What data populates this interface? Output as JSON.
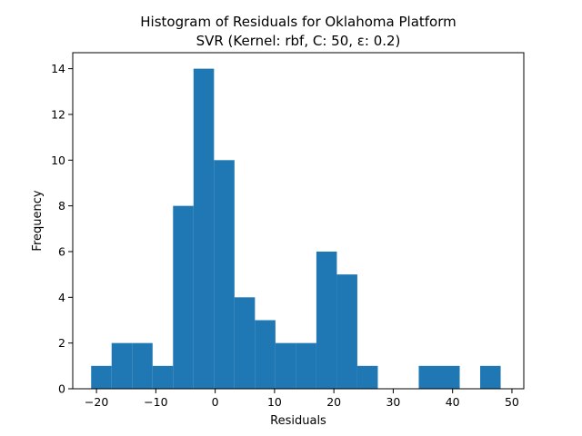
{
  "chart_data": {
    "type": "bar",
    "title_line1": "Histogram of Residuals for Oklahoma Platform",
    "title_line2": "SVR (Kernel: rbf, C: 50, ε: 0.2)",
    "xlabel": "Residuals",
    "ylabel": "Frequency",
    "xlim": [
      -24,
      52
    ],
    "ylim": [
      0,
      14.7
    ],
    "xticks": [
      -20,
      -10,
      0,
      10,
      20,
      30,
      40,
      50
    ],
    "yticks": [
      0,
      2,
      4,
      6,
      8,
      10,
      12,
      14
    ],
    "bar_color": "#1f77b4",
    "bins": [
      {
        "x0": -20.9,
        "x1": -17.45,
        "count": 1
      },
      {
        "x0": -17.45,
        "x1": -14.0,
        "count": 2
      },
      {
        "x0": -14.0,
        "x1": -10.55,
        "count": 2
      },
      {
        "x0": -10.55,
        "x1": -7.1,
        "count": 1
      },
      {
        "x0": -7.1,
        "x1": -3.65,
        "count": 8
      },
      {
        "x0": -3.65,
        "x1": -0.2,
        "count": 14
      },
      {
        "x0": -0.2,
        "x1": 3.25,
        "count": 10
      },
      {
        "x0": 3.25,
        "x1": 6.7,
        "count": 4
      },
      {
        "x0": 6.7,
        "x1": 10.15,
        "count": 3
      },
      {
        "x0": 10.15,
        "x1": 13.6,
        "count": 2
      },
      {
        "x0": 13.6,
        "x1": 17.05,
        "count": 2
      },
      {
        "x0": 17.05,
        "x1": 20.5,
        "count": 6
      },
      {
        "x0": 20.5,
        "x1": 23.95,
        "count": 5
      },
      {
        "x0": 23.95,
        "x1": 27.4,
        "count": 1
      },
      {
        "x0": 27.4,
        "x1": 30.85,
        "count": 0
      },
      {
        "x0": 30.85,
        "x1": 34.3,
        "count": 0
      },
      {
        "x0": 34.3,
        "x1": 37.75,
        "count": 1
      },
      {
        "x0": 37.75,
        "x1": 41.2,
        "count": 1
      },
      {
        "x0": 41.2,
        "x1": 44.65,
        "count": 0
      },
      {
        "x0": 44.65,
        "x1": 48.1,
        "count": 1
      }
    ]
  }
}
